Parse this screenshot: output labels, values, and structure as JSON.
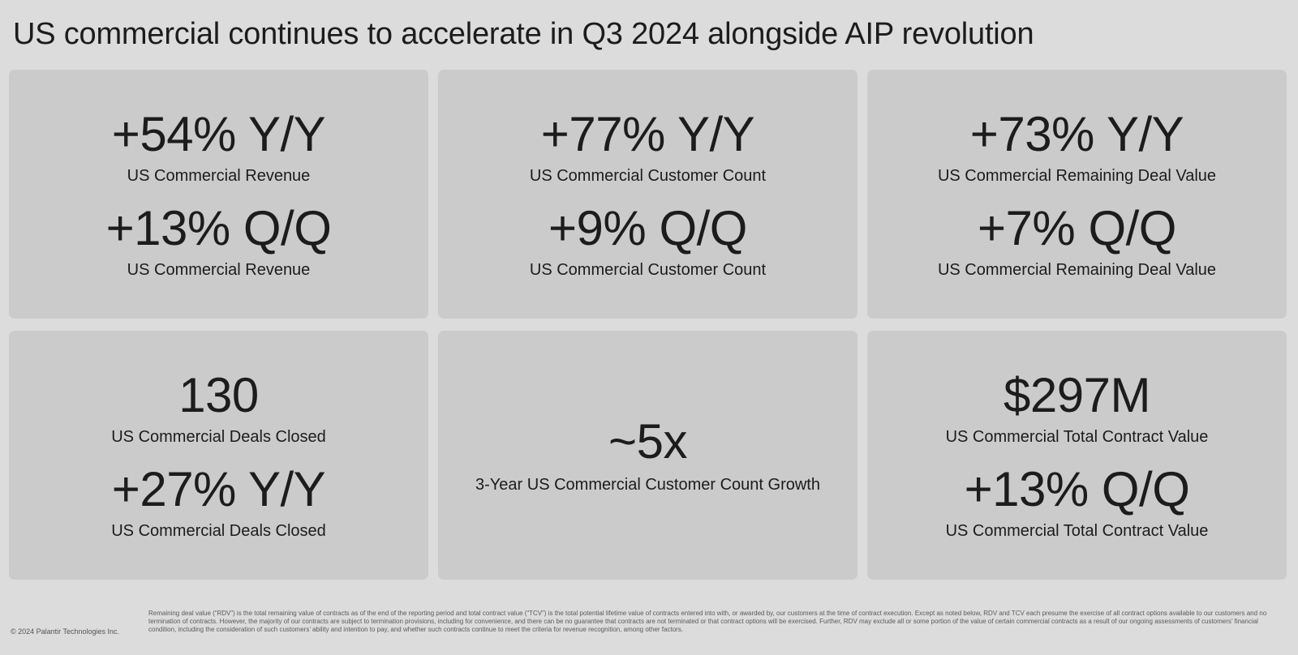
{
  "title": "US commercial continues to accelerate in Q3 2024 alongside AIP revolution",
  "cards": [
    {
      "metrics": [
        {
          "value": "+54% Y/Y",
          "label": "US Commercial Revenue"
        },
        {
          "value": "+13% Q/Q",
          "label": "US Commercial Revenue"
        }
      ]
    },
    {
      "metrics": [
        {
          "value": "+77% Y/Y",
          "label": "US Commercial Customer Count"
        },
        {
          "value": "+9% Q/Q",
          "label": "US Commercial Customer Count"
        }
      ]
    },
    {
      "metrics": [
        {
          "value": "+73% Y/Y",
          "label": "US Commercial Remaining Deal Value"
        },
        {
          "value": "+7% Q/Q",
          "label": "US Commercial Remaining Deal Value"
        }
      ]
    },
    {
      "metrics": [
        {
          "value": "130",
          "label": "US Commercial Deals Closed"
        },
        {
          "value": "+27% Y/Y",
          "label": "US Commercial Deals Closed"
        }
      ]
    },
    {
      "metrics": [
        {
          "value": "~5x",
          "label": "3-Year US Commercial Customer Count Growth"
        }
      ]
    },
    {
      "metrics": [
        {
          "value": "$297M",
          "label": "US Commercial Total Contract Value"
        },
        {
          "value": "+13% Q/Q",
          "label": "US Commercial Total Contract Value"
        }
      ]
    }
  ],
  "footer": {
    "copyright": "© 2024 Palantir Technologies Inc.",
    "disclaimer": "Remaining deal value (“RDV”) is the total remaining value of contracts as of the end of the reporting period and total contract value (“TCV”) is the total potential lifetime value of contracts entered into with, or awarded by, our customers at the time of contract execution. Except as noted below, RDV and TCV each presume the exercise of all contract options available to our customers and no termination of contracts. However, the majority of our contracts are subject to termination provisions, including for convenience, and there can be no guarantee that contracts are not terminated or that contract options will be exercised. Further, RDV may exclude all or some portion of the value of certain commercial contracts as a result of our ongoing assessments of customers’ financial condition, including the consideration of such customers’ ability and intention to pay, and whether such contracts continue to meet the criteria for revenue recognition, among other factors."
  }
}
